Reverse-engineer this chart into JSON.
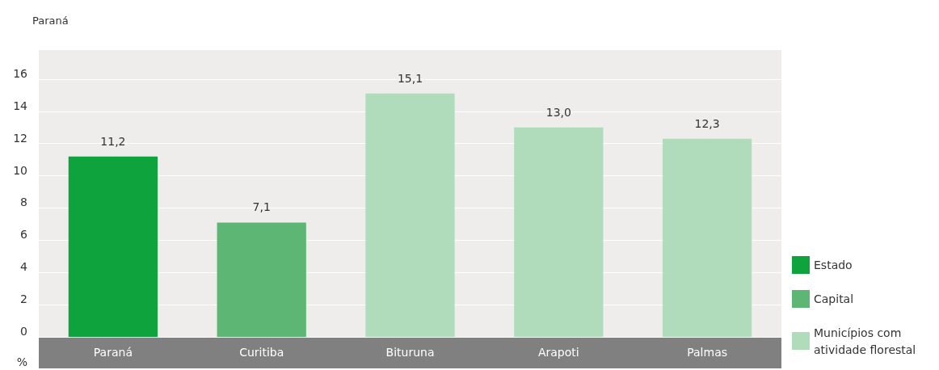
{
  "chart_data": {
    "type": "bar",
    "title": "Paraná",
    "ylabel": "%",
    "categories": [
      "Paraná",
      "Curitiba",
      "Bituruna",
      "Arapoti",
      "Palmas"
    ],
    "series": [
      {
        "name": "Estado",
        "color": "#0ea33c",
        "values": [
          11.2,
          null,
          null,
          null,
          null
        ]
      },
      {
        "name": "Capital",
        "color": "#5db674",
        "values": [
          null,
          7.1,
          null,
          null,
          null
        ]
      },
      {
        "name": "Municípios com atividade florestal",
        "color": "#b0dcbb",
        "values": [
          null,
          null,
          15.1,
          13.0,
          12.3
        ]
      }
    ],
    "value_labels": [
      "11,2",
      "7,1",
      "15,1",
      "13,0",
      "12,3"
    ],
    "ylim": [
      0,
      17.8
    ],
    "yticks": [
      0,
      2,
      4,
      6,
      8,
      10,
      12,
      14,
      16
    ],
    "grid": "y",
    "legend": "right"
  }
}
